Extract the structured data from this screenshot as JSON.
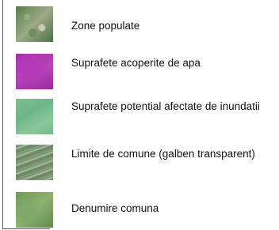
{
  "legend": {
    "items": [
      {
        "label": "Zone populate"
      },
      {
        "label": "Suprafete acoperite de apa"
      },
      {
        "label": "Suprafete potential afectate de inundatii"
      },
      {
        "label": "Limite de comune (galben transparent)"
      },
      {
        "label": "Denumire comuna"
      }
    ]
  }
}
